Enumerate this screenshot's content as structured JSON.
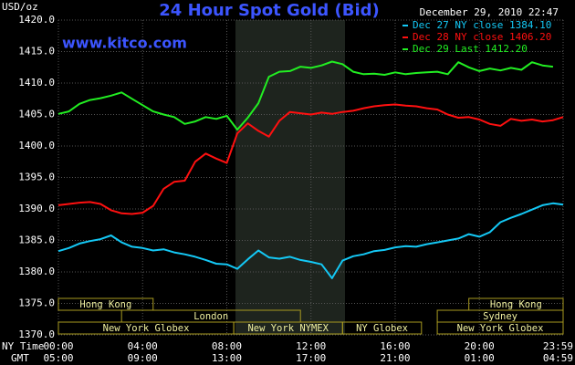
{
  "chart_data": {
    "type": "line",
    "title": "24 Hour Spot Gold (Bid)",
    "subtitle": "www.kitco.com",
    "timestamp": "December 29, 2010 22:47",
    "y_label": "USD/oz",
    "x_label": "NY Time",
    "x2_label": "GMT",
    "x": [
      0,
      0.5,
      1,
      1.5,
      2,
      2.5,
      3,
      3.5,
      4,
      4.5,
      5,
      5.5,
      6,
      6.5,
      7,
      7.5,
      8,
      8.5,
      9,
      9.5,
      10,
      10.5,
      11,
      11.5,
      12,
      12.5,
      13,
      13.5,
      14,
      14.5,
      15,
      15.5,
      16,
      16.5,
      17,
      17.5,
      18,
      18.5,
      19,
      19.5,
      20,
      20.5,
      21,
      21.5,
      22,
      22.5,
      23,
      23.5,
      23.98
    ],
    "series": [
      {
        "name": "Dec 27 NY close 1384.10",
        "color": "#14c8f5",
        "values": [
          1383.3,
          1383.8,
          1384.5,
          1384.9,
          1385.2,
          1385.8,
          1384.7,
          1384.0,
          1383.8,
          1383.4,
          1383.6,
          1383.1,
          1382.8,
          1382.4,
          1381.9,
          1381.3,
          1381.2,
          1380.5,
          1382.0,
          1383.4,
          1382.3,
          1382.1,
          1382.4,
          1381.9,
          1381.6,
          1381.2,
          1379.0,
          1381.8,
          1382.5,
          1382.8,
          1383.3,
          1383.5,
          1383.9,
          1384.1,
          1384.0,
          1384.4,
          1384.7,
          1385.0,
          1385.3,
          1386.0,
          1385.6,
          1386.3,
          1387.9,
          1388.6,
          1389.2,
          1389.9,
          1390.6,
          1390.9,
          1390.7
        ]
      },
      {
        "name": "Dec 28 NY close 1406.20",
        "color": "#ff1010",
        "values": [
          1390.6,
          1390.8,
          1391.0,
          1391.1,
          1390.8,
          1389.8,
          1389.3,
          1389.2,
          1389.4,
          1390.5,
          1393.2,
          1394.3,
          1394.5,
          1397.5,
          1398.8,
          1398.0,
          1397.3,
          1402.0,
          1403.6,
          1402.4,
          1401.5,
          1404.0,
          1405.4,
          1405.2,
          1405.0,
          1405.3,
          1405.1,
          1405.4,
          1405.6,
          1406.0,
          1406.3,
          1406.5,
          1406.6,
          1406.4,
          1406.3,
          1406.0,
          1405.8,
          1405.0,
          1404.5,
          1404.6,
          1404.2,
          1403.5,
          1403.2,
          1404.3,
          1404.0,
          1404.2,
          1403.9,
          1404.1,
          1404.6
        ]
      },
      {
        "name": "Dec 29 Last 1412.20",
        "color": "#22ee22",
        "values": [
          1405.1,
          1405.5,
          1406.7,
          1407.3,
          1407.6,
          1408.0,
          1408.5,
          1407.5,
          1406.5,
          1405.5,
          1405.0,
          1404.6,
          1403.5,
          1403.9,
          1404.6,
          1404.3,
          1404.8,
          1402.6,
          1404.5,
          1406.8,
          1411.0,
          1411.8,
          1411.9,
          1412.6,
          1412.4,
          1412.8,
          1413.4,
          1413.0,
          1411.8,
          1411.4,
          1411.5,
          1411.3,
          1411.7,
          1411.4,
          1411.6,
          1411.7,
          1411.8,
          1411.4,
          1413.3,
          1412.5,
          1411.9,
          1412.3,
          1412.0,
          1412.4,
          1412.1,
          1413.3,
          1412.8,
          1412.6,
          null
        ]
      }
    ],
    "xlim": [
      0,
      23.98
    ],
    "xticks": [
      {
        "value": 0,
        "label": "00:00"
      },
      {
        "value": 4,
        "label": "04:00"
      },
      {
        "value": 8,
        "label": "08:00"
      },
      {
        "value": 12,
        "label": "12:00"
      },
      {
        "value": 16,
        "label": "16:00"
      },
      {
        "value": 20,
        "label": "20:00"
      },
      {
        "value": 23.98,
        "label": "23:59"
      }
    ],
    "x2ticks": [
      {
        "value": 0,
        "label": "05:00"
      },
      {
        "value": 4,
        "label": "09:00"
      },
      {
        "value": 8,
        "label": "13:00"
      },
      {
        "value": 12,
        "label": "17:00"
      },
      {
        "value": 16,
        "label": "21:00"
      },
      {
        "value": 20,
        "label": "01:00"
      },
      {
        "value": 23.98,
        "label": "04:59"
      }
    ],
    "ylim": [
      1370,
      1420
    ],
    "yticks": [
      {
        "value": 1370,
        "label": "1370.0"
      },
      {
        "value": 1375,
        "label": "1375.0"
      },
      {
        "value": 1380,
        "label": "1380.0"
      },
      {
        "value": 1385,
        "label": "1385.0"
      },
      {
        "value": 1390,
        "label": "1390.0"
      },
      {
        "value": 1395,
        "label": "1395.0"
      },
      {
        "value": 1400,
        "label": "1400.0"
      },
      {
        "value": 1405,
        "label": "1405.0"
      },
      {
        "value": 1410,
        "label": "1410.0"
      },
      {
        "value": 1415,
        "label": "1415.0"
      },
      {
        "value": 1420,
        "label": "1420.0"
      }
    ],
    "grid": true,
    "session_rows": [
      [
        {
          "name": "Hong Kong",
          "start": 0,
          "end": 4.5
        },
        {
          "name": "Hong Kong",
          "start": 19.5,
          "end": 23.98
        }
      ],
      [
        {
          "name": "London",
          "start": 3,
          "end": 11.5
        },
        {
          "name": "Sydney",
          "start": 18,
          "end": 23.98
        }
      ],
      [
        {
          "name": "New York Globex",
          "start": 0,
          "end": 8.33
        },
        {
          "name": "New York NYMEX",
          "start": 8.33,
          "end": 13.5
        },
        {
          "name": "NY Globex",
          "start": 13.5,
          "end": 17.25
        },
        {
          "name": "New York Globex",
          "start": 18,
          "end": 23.98
        }
      ]
    ]
  }
}
